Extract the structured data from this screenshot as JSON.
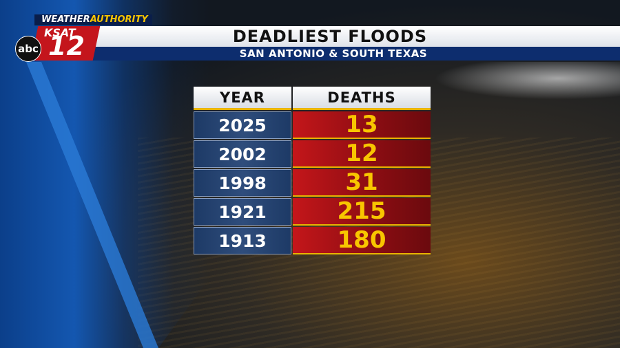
{
  "brand": {
    "weather": "WEATHER",
    "authority": "AUTHORITY",
    "station": "KSAT",
    "channel": "12",
    "network": "abc"
  },
  "header": {
    "title": "DEADLIEST FLOODS",
    "subtitle": "SAN ANTONIO & SOUTH TEXAS"
  },
  "table": {
    "columns": [
      "YEAR",
      "DEATHS"
    ],
    "rows": [
      [
        2025,
        13
      ],
      [
        2002,
        12
      ],
      [
        1998,
        31
      ],
      [
        1921,
        215
      ],
      [
        1913,
        180
      ]
    ]
  }
}
